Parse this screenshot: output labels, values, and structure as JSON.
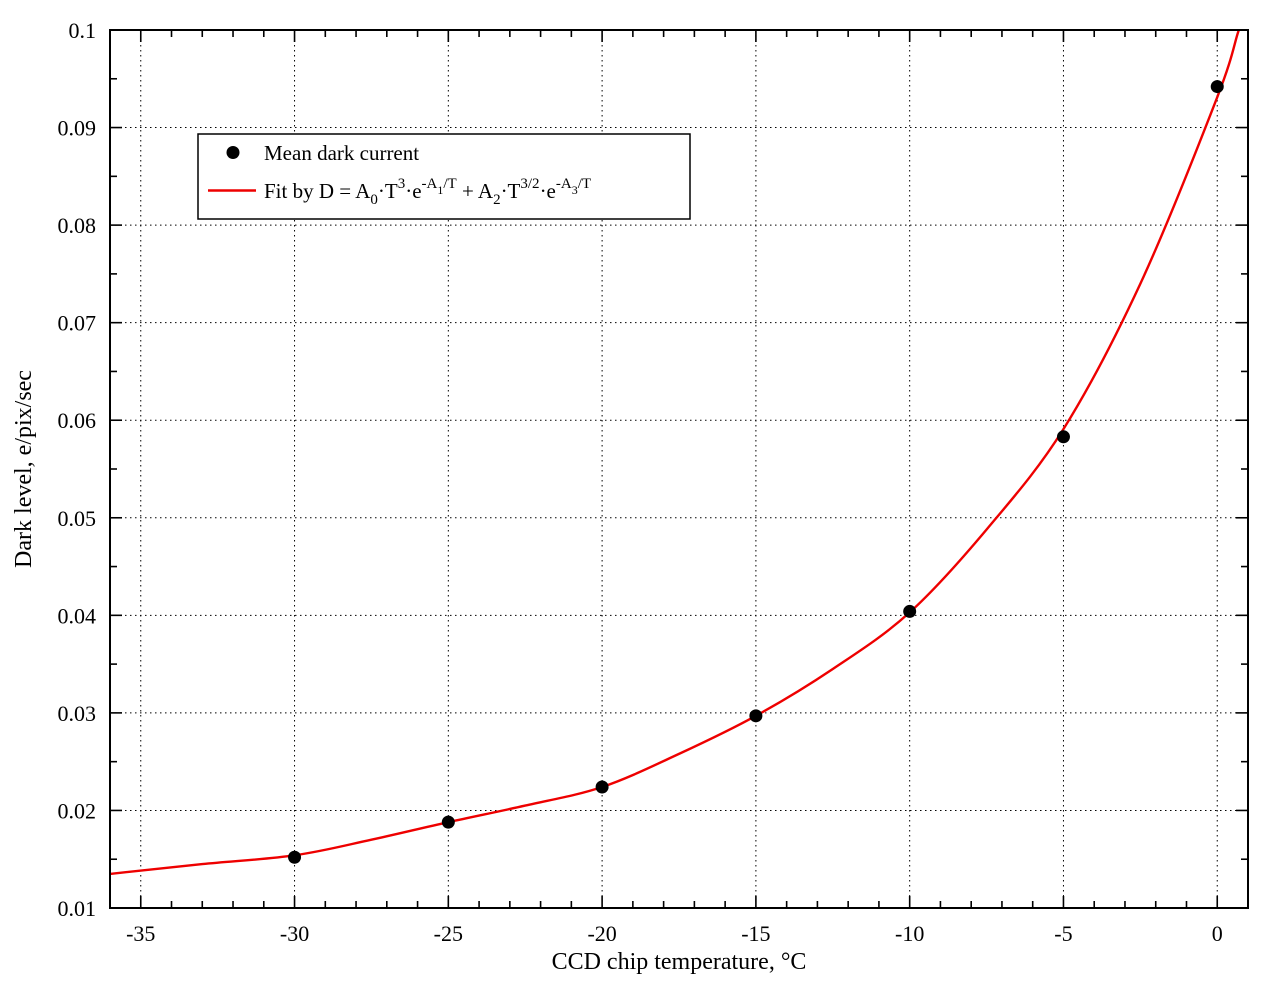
{
  "chart_data": {
    "type": "scatter",
    "title": "",
    "xlabel": "CCD chip temperature, °C",
    "ylabel": "Dark level, e/pix/sec",
    "xlim": [
      -36,
      1
    ],
    "ylim": [
      0.01,
      0.1
    ],
    "grid": {
      "style": "dotted",
      "color": "#000000",
      "at": "major-ticks"
    },
    "x_ticks": [
      {
        "v": -35,
        "label": "-35"
      },
      {
        "v": -30,
        "label": "-30"
      },
      {
        "v": -25,
        "label": "-25"
      },
      {
        "v": -20,
        "label": "-20"
      },
      {
        "v": -15,
        "label": "-15"
      },
      {
        "v": -10,
        "label": "-10"
      },
      {
        "v": -5,
        "label": "-5"
      },
      {
        "v": 0,
        "label": "0"
      }
    ],
    "x_minor_step": 1,
    "y_ticks": [
      {
        "v": 0.01,
        "label": "0.01"
      },
      {
        "v": 0.02,
        "label": "0.02"
      },
      {
        "v": 0.03,
        "label": "0.03"
      },
      {
        "v": 0.04,
        "label": "0.04"
      },
      {
        "v": 0.05,
        "label": "0.05"
      },
      {
        "v": 0.06,
        "label": "0.06"
      },
      {
        "v": 0.07,
        "label": "0.07"
      },
      {
        "v": 0.08,
        "label": "0.08"
      },
      {
        "v": 0.09,
        "label": "0.09"
      },
      {
        "v": 0.1,
        "label": "0.1"
      }
    ],
    "y_minor_step": 0.005,
    "series": [
      {
        "name": "Mean dark current",
        "type": "scatter",
        "marker": "filled-circle",
        "color": "#000000",
        "points": [
          [
            -30,
            0.0152
          ],
          [
            -25,
            0.0188
          ],
          [
            -20,
            0.0224
          ],
          [
            -15,
            0.0297
          ],
          [
            -10,
            0.0404
          ],
          [
            -5,
            0.0583
          ],
          [
            0,
            0.0942
          ]
        ]
      },
      {
        "name": "Fit by D = A0·T^3·e^(-A1/T) + A2·T^(3/2)·e^(-A3/T)",
        "type": "line",
        "color": "#ee0000",
        "points": [
          [
            -36,
            0.0135
          ],
          [
            -33,
            0.0145
          ],
          [
            -30,
            0.0154
          ],
          [
            -27.5,
            0.017
          ],
          [
            -25,
            0.0188
          ],
          [
            -22.5,
            0.0205
          ],
          [
            -20,
            0.0224
          ],
          [
            -17.5,
            0.0258
          ],
          [
            -15,
            0.0297
          ],
          [
            -12.5,
            0.0345
          ],
          [
            -10,
            0.0403
          ],
          [
            -7.5,
            0.0488
          ],
          [
            -5,
            0.0591
          ],
          [
            -2.5,
            0.074
          ],
          [
            0,
            0.0931
          ],
          [
            0.7,
            0.1
          ],
          [
            1,
            0.1025
          ]
        ]
      }
    ],
    "legend": {
      "position": "inside-top-left",
      "border_color": "#000000",
      "fill_color": "#ffffff",
      "items": [
        {
          "label": "Mean dark current",
          "marker": "filled-circle",
          "color": "#000000"
        },
        {
          "label": "Fit by D = A0·T^3·e^(-A1/T) + A2·T^(3/2)·e^(-A3/T)",
          "marker": "line",
          "color": "#ee0000",
          "formula_segments": [
            {
              "text": "Fit by D = A",
              "style": "normal"
            },
            {
              "text": "0",
              "style": "sub"
            },
            {
              "text": "·T",
              "style": "normal"
            },
            {
              "text": "3",
              "style": "sup"
            },
            {
              "text": "·e",
              "style": "normal"
            },
            {
              "text": "-A",
              "style": "sup"
            },
            {
              "text": "1",
              "style": "supsub"
            },
            {
              "text": "/T",
              "style": "sup"
            },
            {
              "text": " + A",
              "style": "normal"
            },
            {
              "text": "2",
              "style": "sub"
            },
            {
              "text": "·T",
              "style": "normal"
            },
            {
              "text": "3/2",
              "style": "sup"
            },
            {
              "text": "·e",
              "style": "normal"
            },
            {
              "text": "-A",
              "style": "sup"
            },
            {
              "text": "3",
              "style": "supsub"
            },
            {
              "text": "/T",
              "style": "sup"
            }
          ]
        }
      ]
    }
  }
}
